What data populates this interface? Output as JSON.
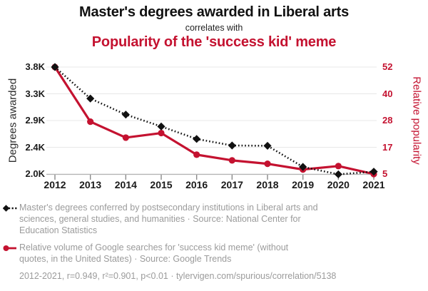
{
  "header": {
    "title_top": "Master's degrees awarded in Liberal arts",
    "connector": "correlates with",
    "title_bottom": "Popularity of the 'success kid' meme"
  },
  "chart_data": {
    "type": "line",
    "title": "Master's degrees awarded in Liberal arts correlates with Popularity of the 'success kid' meme",
    "x": [
      "2012",
      "2013",
      "2014",
      "2015",
      "2016",
      "2017",
      "2018",
      "2019",
      "2020",
      "2021"
    ],
    "series": [
      {
        "name": "Master's degrees conferred by postsecondary institutions in Liberal arts and sciences, general studies, and humanities",
        "axis": "left",
        "style": "dotted",
        "marker": "diamond",
        "values": [
          3800,
          3270,
          3000,
          2800,
          2590,
          2480,
          2475,
          2120,
          1995,
          2040
        ]
      },
      {
        "name": "Relative volume of Google searches for 'success kid meme'",
        "axis": "right",
        "style": "solid",
        "marker": "circle",
        "values": [
          52,
          28,
          21,
          23,
          13.5,
          11,
          9.5,
          7,
          8.5,
          5
        ]
      }
    ],
    "left_axis": {
      "label": "Degrees awarded",
      "ticks": [
        "3.8K",
        "3.3K",
        "2.9K",
        "2.4K",
        "2.0K"
      ],
      "range": [
        2000,
        3800
      ]
    },
    "right_axis": {
      "label": "Relative popularity",
      "ticks": [
        "52",
        "40",
        "28",
        "17",
        "5"
      ],
      "range": [
        5,
        52
      ]
    },
    "grid": "horizontal",
    "legend_position": "bottom"
  },
  "legend": {
    "series1": "Master's degrees conferred by postsecondary institutions in Liberal arts and\nsciences, general studies, and humanities · Source: National Center for\nEducation Statistics",
    "series2": "Relative volume of Google searches for 'success kid meme' (without\nquotes, in the United States) · Source: Google Trends",
    "footer": "2012-2021, r=0.949, r²=0.901, p<0.01 · tylervigen.com/spurious/correlation/5138"
  },
  "colors": {
    "accent_red": "#c41230",
    "series_black": "#111111",
    "legend_gray": "#9b9b9b",
    "gridline": "#e8e8e8",
    "axis_line": "#b3b3b3",
    "tick_mark": "#8a8a8a"
  }
}
